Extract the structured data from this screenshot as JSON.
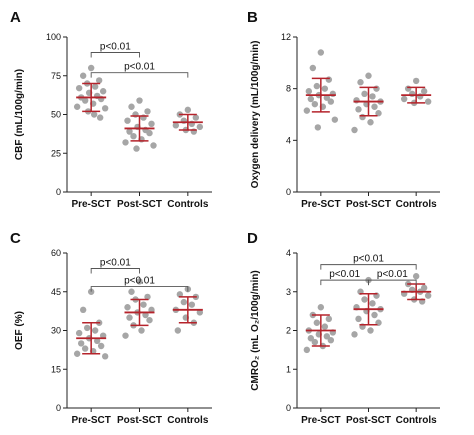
{
  "chart_data": [
    {
      "type": "scatter",
      "panel": "A",
      "ylabel": "CBF (mL/100g/min)",
      "ylim": [
        0,
        100
      ],
      "yticks": [
        0,
        25,
        50,
        75,
        100
      ],
      "categories": [
        "Pre-SCT",
        "Post-SCT",
        "Controls"
      ],
      "groups": [
        {
          "name": "Pre-SCT",
          "mean": 61,
          "sd": 9,
          "points": [
            80,
            75,
            72,
            70,
            68,
            67,
            65,
            64,
            62,
            61,
            60,
            59,
            57,
            55,
            54,
            52,
            50,
            48
          ]
        },
        {
          "name": "Post-SCT",
          "mean": 41,
          "sd": 8,
          "points": [
            59,
            55,
            52,
            50,
            48,
            46,
            44,
            42,
            40,
            39,
            38,
            36,
            34,
            32,
            30,
            28
          ]
        },
        {
          "name": "Controls",
          "mean": 45,
          "sd": 5,
          "points": [
            53,
            50,
            48,
            46,
            44,
            43,
            42,
            40,
            39
          ]
        }
      ],
      "brackets": [
        {
          "from": 0,
          "to": 1,
          "label": "p<0.01",
          "y": 90
        },
        {
          "from": 0,
          "to": 2,
          "label": "p<0.01",
          "y": 77
        }
      ]
    },
    {
      "type": "scatter",
      "panel": "B",
      "ylabel": "Oxygen delivery (mL/100g/min)",
      "ylim": [
        0,
        12
      ],
      "yticks": [
        0,
        4,
        8,
        12
      ],
      "categories": [
        "Pre-SCT",
        "Post-SCT",
        "Controls"
      ],
      "groups": [
        {
          "name": "Pre-SCT",
          "mean": 7.5,
          "sd": 1.3,
          "points": [
            10.8,
            9.6,
            8.7,
            8.2,
            8.0,
            7.8,
            7.6,
            7.5,
            7.3,
            7.2,
            7.0,
            6.8,
            6.6,
            6.3,
            5.6,
            5.0
          ]
        },
        {
          "name": "Post-SCT",
          "mean": 7.0,
          "sd": 1.1,
          "points": [
            9.0,
            8.5,
            8.0,
            7.6,
            7.4,
            7.1,
            7.0,
            6.8,
            6.6,
            6.4,
            6.1,
            5.8,
            5.4,
            4.8
          ]
        },
        {
          "name": "Controls",
          "mean": 7.5,
          "sd": 0.6,
          "points": [
            8.6,
            8.0,
            7.8,
            7.6,
            7.4,
            7.2,
            7.0,
            6.9
          ]
        }
      ],
      "brackets": []
    },
    {
      "type": "scatter",
      "panel": "C",
      "ylabel": "OEF (%)",
      "ylim": [
        0,
        60
      ],
      "yticks": [
        0,
        15,
        30,
        45,
        60
      ],
      "categories": [
        "Pre-SCT",
        "Post-SCT",
        "Controls"
      ],
      "groups": [
        {
          "name": "Pre-SCT",
          "mean": 27,
          "sd": 6,
          "points": [
            45,
            38,
            33,
            31,
            30,
            29,
            28,
            27,
            26,
            25,
            24,
            23,
            22,
            21,
            20
          ]
        },
        {
          "name": "Post-SCT",
          "mean": 37,
          "sd": 5,
          "points": [
            49,
            45,
            43,
            42,
            40,
            39,
            38,
            37,
            36,
            35,
            34,
            32,
            30,
            28
          ]
        },
        {
          "name": "Controls",
          "mean": 38,
          "sd": 5,
          "points": [
            46,
            44,
            43,
            41,
            40,
            38,
            37,
            35,
            33,
            30
          ]
        }
      ],
      "brackets": [
        {
          "from": 0,
          "to": 1,
          "label": "p<0.01",
          "y": 54
        },
        {
          "from": 0,
          "to": 2,
          "label": "p<0.01",
          "y": 47
        }
      ]
    },
    {
      "type": "scatter",
      "panel": "D",
      "ylabel": "CMRO₂ (mL O₂/100g/min)",
      "ylim": [
        0,
        4
      ],
      "yticks": [
        0,
        1,
        2,
        3,
        4
      ],
      "categories": [
        "Pre-SCT",
        "Post-SCT",
        "Controls"
      ],
      "groups": [
        {
          "name": "Pre-SCT",
          "mean": 2.0,
          "sd": 0.4,
          "points": [
            2.6,
            2.4,
            2.3,
            2.2,
            2.1,
            2.0,
            1.95,
            1.9,
            1.85,
            1.8,
            1.75,
            1.7,
            1.6,
            1.5
          ]
        },
        {
          "name": "Post-SCT",
          "mean": 2.55,
          "sd": 0.4,
          "points": [
            3.3,
            3.0,
            2.9,
            2.8,
            2.7,
            2.6,
            2.55,
            2.5,
            2.4,
            2.3,
            2.2,
            2.1,
            2.0,
            1.9
          ]
        },
        {
          "name": "Controls",
          "mean": 3.0,
          "sd": 0.2,
          "points": [
            3.4,
            3.2,
            3.1,
            3.05,
            3.0,
            2.95,
            2.9,
            2.8,
            2.75
          ]
        }
      ],
      "brackets": [
        {
          "from": 0,
          "to": 2,
          "label": "p<0.01",
          "y": 3.7
        },
        {
          "from": 0,
          "to": 1,
          "label": "p<0.01",
          "y": 3.3
        },
        {
          "from": 1,
          "to": 2,
          "label": "p<0.01",
          "y": 3.3
        }
      ]
    }
  ]
}
